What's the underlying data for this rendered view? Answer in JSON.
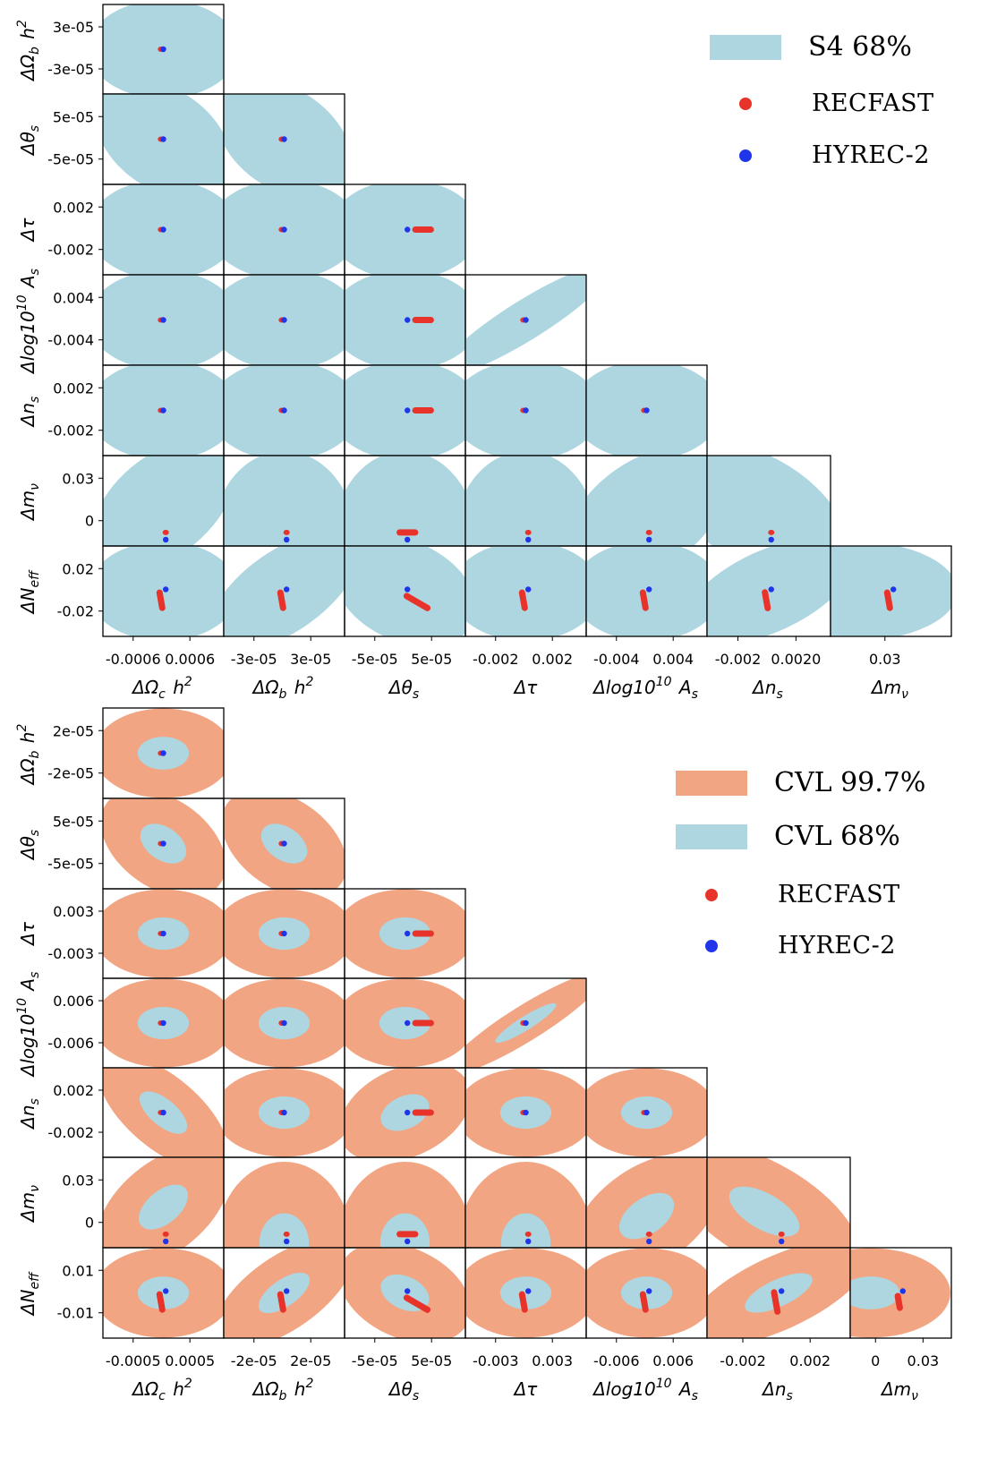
{
  "colors": {
    "s4_68": "#aed6e0",
    "cvl_997": "#f2a583",
    "cvl_68": "#aed6e0",
    "recfast": "#e8332a",
    "hyrec": "#1f35ea",
    "frame": "#000000"
  },
  "chart_data": [
    {
      "type": "scatter",
      "title": "",
      "parameters": [
        "ΔΩ_c h^2",
        "ΔΩ_b h^2",
        "Δθ_s",
        "Δτ",
        "Δlog10^10 A_s",
        "Δn_s",
        "Δm_ν",
        "ΔN_eff"
      ],
      "xlabels": [
        "ΔΩ_c h^2",
        "ΔΩ_b h^2",
        "Δθ_s",
        "Δτ",
        "Δlog10^10 A_s",
        "Δn_s",
        "Δm_ν"
      ],
      "ylabels": [
        "ΔΩ_b h^2",
        "Δθ_s",
        "Δτ",
        "Δlog10^10 A_s",
        "Δn_s",
        "Δm_ν",
        "ΔN_eff"
      ],
      "xticks": [
        [
          "-0.0006",
          "0.0006"
        ],
        [
          "-3e-05",
          "3e-05"
        ],
        [
          "-5e-05",
          "5e-05"
        ],
        [
          "-0.002",
          "0.002"
        ],
        [
          "-0.004",
          "0.004"
        ],
        [
          "-0.002",
          "0.0020"
        ],
        [
          "0.03"
        ]
      ],
      "yticks": [
        [
          "3e-05",
          "-3e-05"
        ],
        [
          "5e-05",
          "-5e-05"
        ],
        [
          "0.002",
          "-0.002"
        ],
        [
          "0.004",
          "-0.004"
        ],
        [
          "0.002",
          "-0.002"
        ],
        [
          "0.03",
          "0"
        ],
        [
          "0.02",
          "-0.02"
        ]
      ],
      "contours": [
        "S4 68%"
      ],
      "series": [
        {
          "name": "S4 68%",
          "kind": "contour"
        },
        {
          "name": "RECFAST",
          "kind": "points"
        },
        {
          "name": "HYREC-2",
          "kind": "points"
        }
      ],
      "legend_position": "top-right",
      "grid": false
    },
    {
      "type": "scatter",
      "title": "",
      "parameters": [
        "ΔΩ_c h^2",
        "ΔΩ_b h^2",
        "Δθ_s",
        "Δτ",
        "Δlog10^10 A_s",
        "Δn_s",
        "Δm_ν",
        "ΔN_eff"
      ],
      "xlabels": [
        "ΔΩ_c h^2",
        "ΔΩ_b h^2",
        "Δθ_s",
        "Δτ",
        "Δlog10^10 A_s",
        "Δn_s",
        "Δm_ν"
      ],
      "ylabels": [
        "ΔΩ_b h^2",
        "Δθ_s",
        "Δτ",
        "Δlog10^10 A_s",
        "Δn_s",
        "Δm_ν",
        "ΔN_eff"
      ],
      "xticks": [
        [
          "-0.0005",
          "0.0005"
        ],
        [
          "-2e-05",
          "2e-05"
        ],
        [
          "-5e-05",
          "5e-05"
        ],
        [
          "-0.003",
          "0.003"
        ],
        [
          "-0.006",
          "0.006"
        ],
        [
          "-0.002",
          "0.002"
        ],
        [
          "0",
          "0.03"
        ]
      ],
      "yticks": [
        [
          "2e-05",
          "-2e-05"
        ],
        [
          "5e-05",
          "-5e-05"
        ],
        [
          "0.003",
          "-0.003"
        ],
        [
          "0.006",
          "-0.006"
        ],
        [
          "0.002",
          "-0.002"
        ],
        [
          "0.03",
          "0"
        ],
        [
          "0.01",
          "-0.01"
        ]
      ],
      "contours": [
        "CVL 99.7%",
        "CVL 68%"
      ],
      "series": [
        {
          "name": "CVL 99.7%",
          "kind": "contour"
        },
        {
          "name": "CVL 68%",
          "kind": "contour"
        },
        {
          "name": "RECFAST",
          "kind": "points"
        },
        {
          "name": "HYREC-2",
          "kind": "points"
        }
      ],
      "legend_position": "top-right",
      "grid": false
    }
  ],
  "legends": {
    "top": {
      "s4": "S4 68%",
      "recfast": "RECFAST",
      "hyrec": "HYREC-2"
    },
    "bottom": {
      "cvl997": "CVL 99.7%",
      "cvl68": "CVL 68%",
      "recfast": "RECFAST",
      "hyrec": "HYREC-2"
    }
  }
}
